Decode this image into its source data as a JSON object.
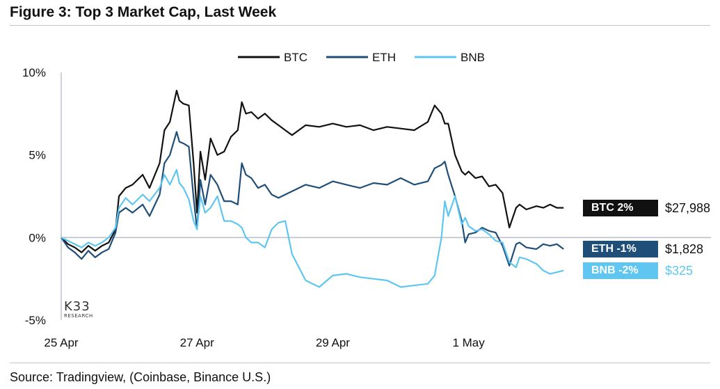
{
  "title": "Figure 3: Top 3 Market Cap, Last Week",
  "source": "Source: Tradingview, (Coinbase, Binance U.S.)",
  "logo": {
    "main": "K33",
    "sub": "RESEARCH"
  },
  "colors": {
    "BTC": "#111111",
    "ETH": "#1f4e79",
    "BNB": "#5ec6f0",
    "zero": "#b8bcc6",
    "axis": "#bfc4cf"
  },
  "chart_data": {
    "type": "line",
    "title": "Figure 3: Top 3 Market Cap, Last Week",
    "xlabel": "",
    "ylabel": "",
    "ylim": [
      -5,
      10
    ],
    "xlim": [
      0,
      7.5
    ],
    "x_ticks": [
      {
        "pos": 0,
        "label": "25 Apr"
      },
      {
        "pos": 2,
        "label": "27 Apr"
      },
      {
        "pos": 4,
        "label": "29 Apr"
      },
      {
        "pos": 6,
        "label": "1 May"
      }
    ],
    "y_ticks": [
      {
        "value": 10,
        "label": "10%"
      },
      {
        "value": 5,
        "label": "5%"
      },
      {
        "value": 0,
        "label": "0%"
      },
      {
        "value": -5,
        "label": "-5%"
      }
    ],
    "series": [
      {
        "name": "BTC",
        "badge": "BTC 2%",
        "price": "$27,988",
        "x": [
          0,
          0.1,
          0.2,
          0.3,
          0.4,
          0.5,
          0.6,
          0.7,
          0.8,
          0.85,
          0.95,
          1.05,
          1.2,
          1.3,
          1.45,
          1.52,
          1.6,
          1.7,
          1.74,
          1.8,
          1.88,
          1.95,
          2.0,
          2.05,
          2.12,
          2.2,
          2.3,
          2.4,
          2.5,
          2.6,
          2.66,
          2.72,
          2.8,
          2.9,
          3.0,
          3.1,
          3.2,
          3.3,
          3.4,
          3.6,
          3.8,
          4.0,
          4.2,
          4.4,
          4.6,
          4.8,
          5.0,
          5.2,
          5.4,
          5.5,
          5.6,
          5.65,
          5.7,
          5.8,
          5.9,
          5.95,
          6.0,
          6.1,
          6.2,
          6.3,
          6.4,
          6.5,
          6.6,
          6.7,
          6.75,
          6.85,
          7.0,
          7.1,
          7.2,
          7.3,
          7.4
        ],
        "values": [
          0,
          -0.4,
          -0.6,
          -0.9,
          -0.5,
          -0.8,
          -0.5,
          -0.3,
          0.5,
          2.5,
          3.0,
          3.2,
          3.8,
          3.0,
          4.5,
          6.5,
          7.0,
          8.9,
          8.3,
          8.1,
          8.0,
          4.5,
          1.5,
          5.2,
          3.5,
          6.0,
          5.0,
          5.2,
          6.1,
          6.5,
          8.2,
          7.5,
          7.6,
          7.2,
          7.5,
          7.1,
          6.8,
          6.5,
          6.2,
          6.8,
          6.7,
          6.9,
          6.7,
          6.8,
          6.5,
          6.7,
          6.6,
          6.5,
          7.0,
          8.0,
          7.5,
          6.9,
          6.9,
          5.0,
          4.0,
          3.8,
          4.0,
          3.6,
          3.7,
          3.1,
          3.2,
          2.7,
          0.6,
          1.8,
          2.0,
          1.7,
          1.9,
          1.8,
          2.0,
          1.8,
          1.8
        ]
      },
      {
        "name": "ETH",
        "badge": "ETH -1%",
        "price": "$1,828",
        "x": [
          0,
          0.1,
          0.2,
          0.3,
          0.4,
          0.5,
          0.6,
          0.7,
          0.8,
          0.85,
          0.95,
          1.05,
          1.2,
          1.3,
          1.45,
          1.52,
          1.6,
          1.7,
          1.74,
          1.8,
          1.88,
          1.95,
          2.0,
          2.05,
          2.12,
          2.2,
          2.3,
          2.4,
          2.5,
          2.6,
          2.66,
          2.72,
          2.8,
          2.9,
          3.0,
          3.1,
          3.2,
          3.3,
          3.4,
          3.6,
          3.8,
          4.0,
          4.2,
          4.4,
          4.6,
          4.8,
          5.0,
          5.2,
          5.4,
          5.5,
          5.6,
          5.65,
          5.7,
          5.8,
          5.9,
          5.95,
          6.0,
          6.1,
          6.2,
          6.3,
          6.4,
          6.5,
          6.6,
          6.7,
          6.75,
          6.85,
          7.0,
          7.1,
          7.2,
          7.3,
          7.4
        ],
        "values": [
          0,
          -0.6,
          -0.9,
          -1.3,
          -0.8,
          -1.2,
          -0.9,
          -0.7,
          0.3,
          1.5,
          1.8,
          1.5,
          2.0,
          1.3,
          2.6,
          4.5,
          5.0,
          6.4,
          5.8,
          5.7,
          5.5,
          2.4,
          0.5,
          3.5,
          2.0,
          3.8,
          3.2,
          2.2,
          2.2,
          2.0,
          4.5,
          3.8,
          3.6,
          3.0,
          3.2,
          2.6,
          2.4,
          2.6,
          2.8,
          3.2,
          3.0,
          3.4,
          3.2,
          3.0,
          3.3,
          3.2,
          3.6,
          3.2,
          3.4,
          4.2,
          4.4,
          4.6,
          3.8,
          2.5,
          1.0,
          -0.3,
          0.2,
          0.3,
          0.6,
          0.4,
          0.3,
          -0.5,
          -1.7,
          -0.4,
          -0.3,
          -0.6,
          -0.7,
          -0.4,
          -0.5,
          -0.4,
          -0.7
        ]
      },
      {
        "name": "BNB",
        "badge": "BNB -2%",
        "price": "$325",
        "x": [
          0,
          0.1,
          0.2,
          0.3,
          0.4,
          0.5,
          0.6,
          0.7,
          0.8,
          0.85,
          0.95,
          1.05,
          1.2,
          1.3,
          1.45,
          1.52,
          1.6,
          1.7,
          1.74,
          1.8,
          1.88,
          1.95,
          2.0,
          2.05,
          2.12,
          2.2,
          2.3,
          2.4,
          2.5,
          2.6,
          2.66,
          2.72,
          2.8,
          2.9,
          3.0,
          3.1,
          3.2,
          3.3,
          3.4,
          3.6,
          3.8,
          4.0,
          4.2,
          4.4,
          4.6,
          4.8,
          5.0,
          5.2,
          5.4,
          5.5,
          5.6,
          5.65,
          5.7,
          5.8,
          5.9,
          5.95,
          6.0,
          6.1,
          6.2,
          6.3,
          6.4,
          6.5,
          6.6,
          6.7,
          6.75,
          6.85,
          7.0,
          7.1,
          7.2,
          7.3,
          7.4
        ],
        "values": [
          0,
          -0.2,
          -0.4,
          -0.6,
          -0.3,
          -0.5,
          -0.3,
          0.0,
          0.6,
          1.8,
          2.4,
          2.0,
          2.6,
          2.2,
          3.0,
          3.8,
          3.2,
          4.1,
          3.3,
          3.0,
          2.3,
          1.0,
          0.5,
          2.5,
          1.5,
          1.8,
          2.5,
          1.0,
          1.0,
          0.8,
          0.6,
          0.0,
          -0.3,
          -0.3,
          -0.6,
          0.5,
          0.9,
          1.0,
          -1.0,
          -2.6,
          -3.0,
          -2.3,
          -2.2,
          -2.4,
          -2.5,
          -2.6,
          -3.0,
          -2.9,
          -2.8,
          -2.3,
          0.0,
          2.2,
          1.3,
          2.5,
          0.8,
          1.2,
          0.7,
          0.4,
          0.5,
          0.2,
          -0.2,
          -0.3,
          -1.5,
          -1.8,
          -1.2,
          -1.3,
          -1.6,
          -2.0,
          -2.2,
          -2.1,
          -2.0
        ]
      }
    ]
  }
}
